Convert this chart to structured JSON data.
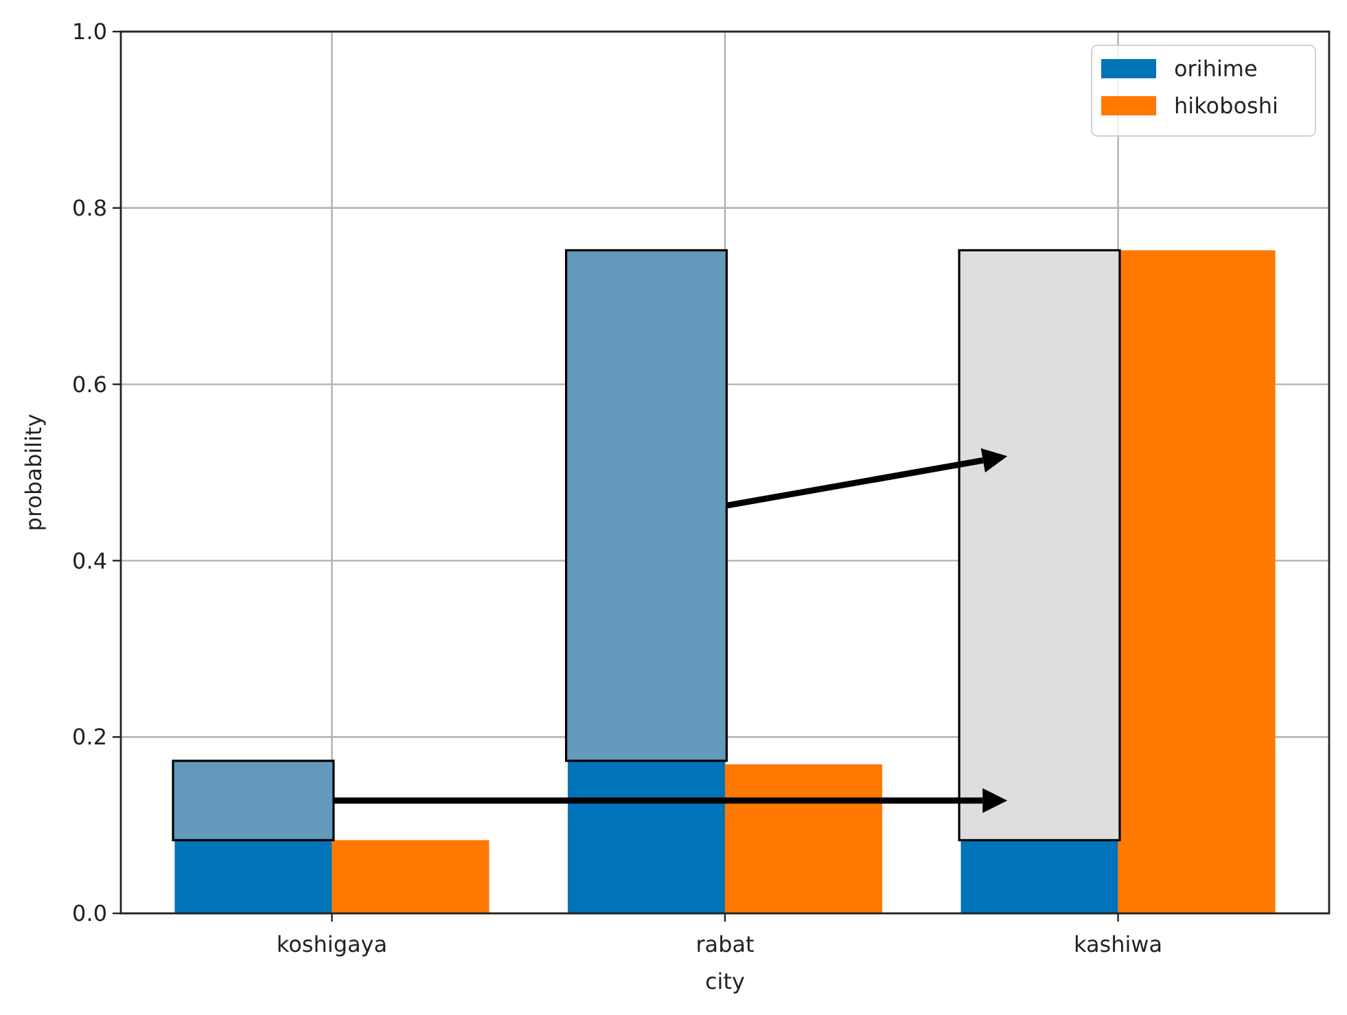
{
  "chart_data": {
    "type": "bar",
    "xlabel": "city",
    "ylabel": "probability",
    "categories": [
      "koshigaya",
      "rabat",
      "kashiwa"
    ],
    "series": [
      {
        "name": "orihime",
        "color": "#0173b8",
        "values": [
          0.083,
          0.173,
          0.083
        ]
      },
      {
        "name": "hikoboshi",
        "color": "#ff7800",
        "values": [
          0.083,
          0.169,
          0.752
        ]
      },
      {
        "colors": [
          "#6399bb",
          "#6399bb",
          "#dedede"
        ],
        "base": [
          0.083,
          0.173,
          0.083
        ],
        "values": [
          0.09,
          0.579,
          0.669
        ]
      }
    ],
    "ylim": [
      0,
      1
    ],
    "yticks": [
      {
        "value": 0,
        "label": "0.0"
      },
      0.2,
      0.4,
      0.6,
      0.8,
      {
        "value": 1,
        "label": "1.0"
      }
    ],
    "grid": true,
    "legend": "top right"
  }
}
